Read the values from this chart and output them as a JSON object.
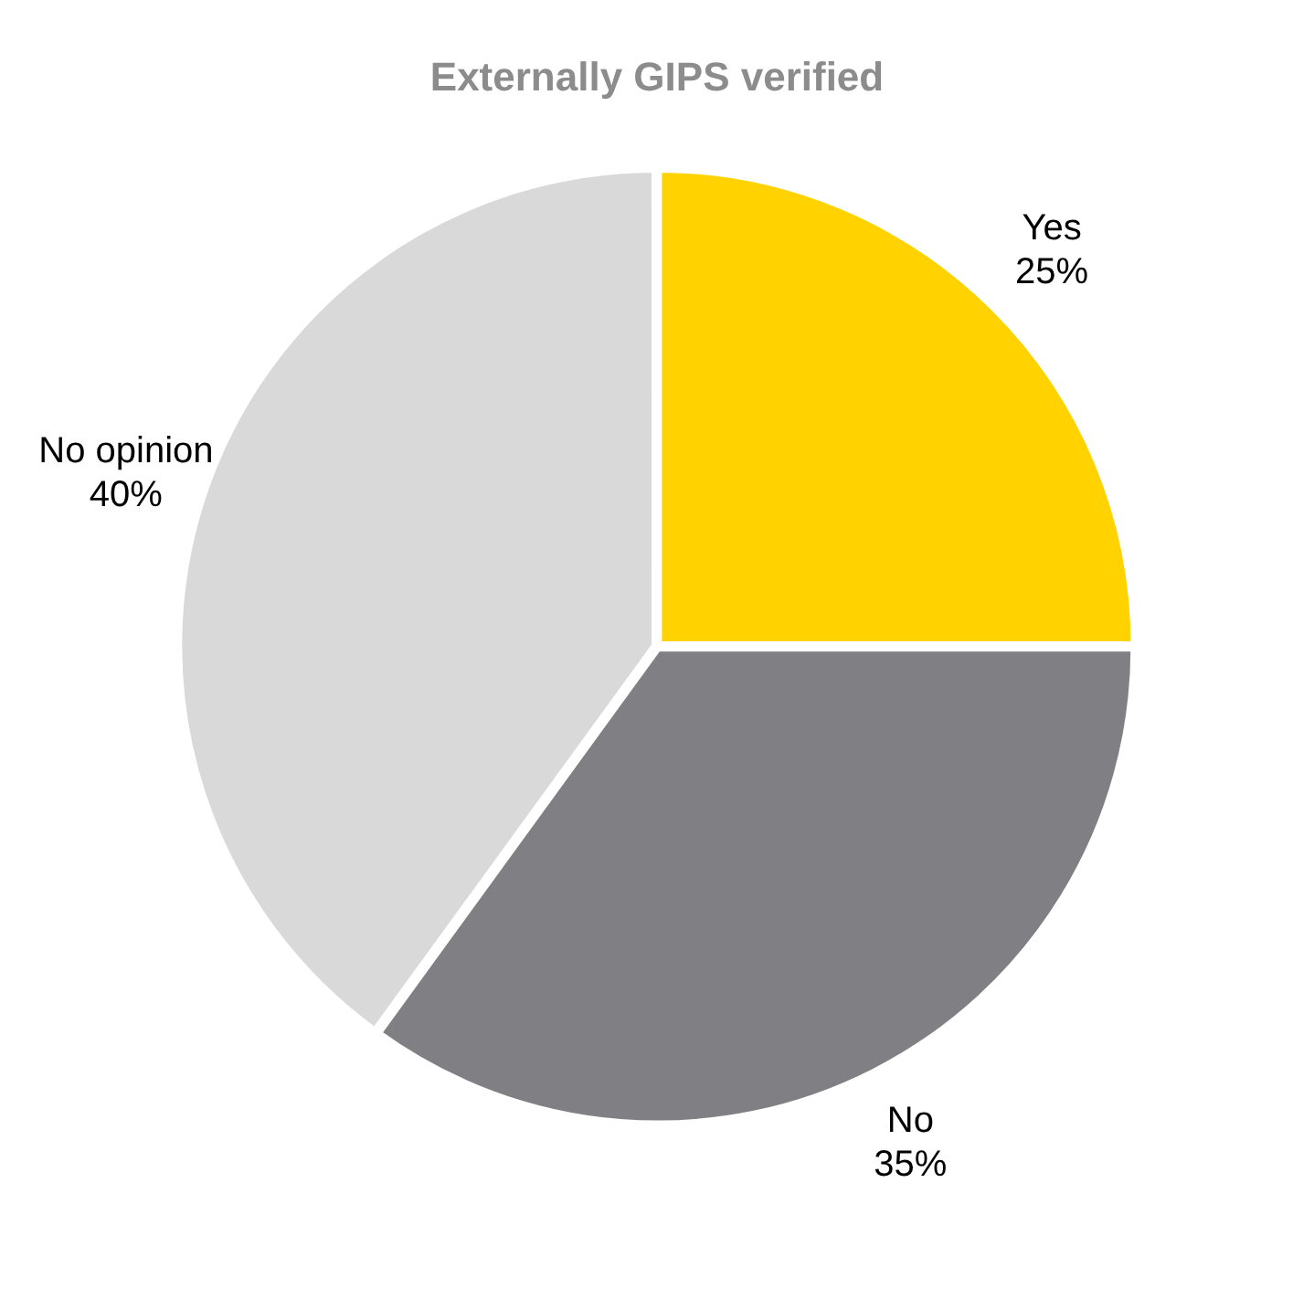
{
  "chart_data": {
    "type": "pie",
    "title": "Externally GIPS verified",
    "categories": [
      "Yes",
      "No",
      "No opinion"
    ],
    "values": [
      25,
      35,
      40
    ],
    "value_labels": [
      "25%",
      "35%",
      "40%"
    ],
    "colors": [
      "#ffd200",
      "#807f83",
      "#d9d9d9"
    ],
    "legend": false
  }
}
